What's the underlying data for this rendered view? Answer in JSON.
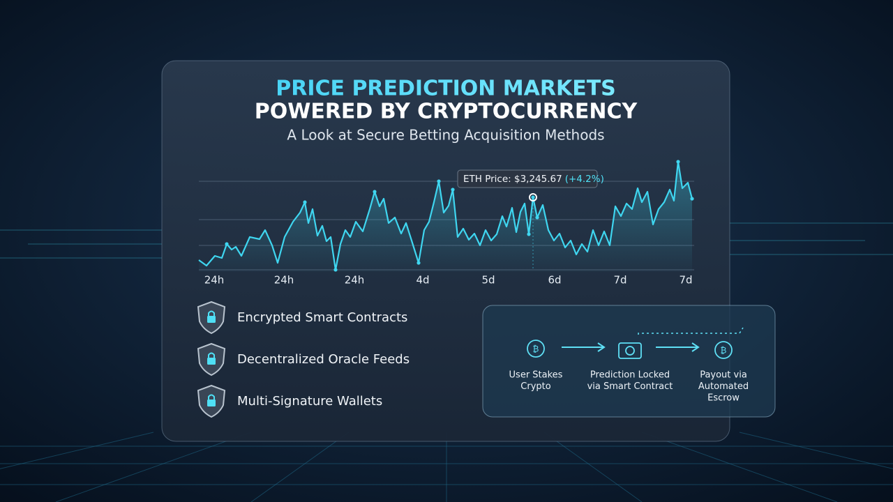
{
  "header": {
    "title_line1": "PRICE PREDICTION MARKETS",
    "title_line2": "POWERED BY CRYPTOCURRENCY",
    "subtitle": "A Look at Secure Betting Acquisition Methods"
  },
  "chart_data": {
    "type": "line",
    "x": [
      0,
      11,
      23,
      33,
      40,
      47,
      53,
      61,
      73,
      87,
      95,
      105,
      113,
      123,
      135,
      145,
      152,
      157,
      163,
      170,
      177,
      183,
      189,
      196,
      203,
      210,
      217,
      225,
      235,
      245,
      252,
      259,
      265,
      272,
      281,
      290,
      297,
      305,
      315,
      323,
      330,
      337,
      344,
      351,
      358,
      364,
      371,
      379,
      387,
      395,
      403,
      411,
      419,
      427,
      435,
      441,
      449,
      455,
      461,
      467,
      473,
      479,
      485,
      493,
      501,
      509,
      517,
      525,
      533,
      541,
      549,
      557,
      565,
      573,
      581,
      589,
      597,
      605,
      613,
      621,
      629,
      635,
      643,
      651,
      659,
      667,
      675,
      681,
      687,
      693,
      701,
      707
    ],
    "series": [
      {
        "color": "#3fd6f0",
        "values": [
          10.6,
          5.6,
          14.4,
          12.5,
          25,
          20,
          22.5,
          14.4,
          31.3,
          29.4,
          37.5,
          23.8,
          8.1,
          31.3,
          45,
          53.1,
          62.5,
          43.8,
          56.3,
          32.5,
          41.3,
          27.5,
          31.3,
          1.9,
          25,
          37.5,
          31.3,
          45,
          36.3,
          56.3,
          71.9,
          58.8,
          65.6,
          43.8,
          48.8,
          34.4,
          43.8,
          28.1,
          8.1,
          37.5,
          45,
          62.5,
          81.3,
          53.1,
          59.4,
          73.8,
          31.3,
          38.8,
          28.8,
          34.4,
          23.8,
          37.5,
          28.1,
          33.8,
          50,
          40.6,
          57.5,
          35.6,
          53.8,
          61.3,
          33.8,
          66.9,
          48.8,
          60,
          37.5,
          28.1,
          34.4,
          21.9,
          28.1,
          15.6,
          25,
          18.1,
          37.5,
          23.8,
          36.3,
          23.8,
          58.8,
          50,
          61.3,
          56.3,
          75,
          62.5,
          71.9,
          42.5,
          56.3,
          62.5,
          73.8,
          63.8,
          98.8,
          75,
          80,
          65.6
        ]
      }
    ],
    "xlim": [
      0,
      707
    ],
    "ylim": [
      0,
      100
    ],
    "xticks": [
      {
        "value": 22,
        "label": "24h"
      },
      {
        "value": 122,
        "label": "24h"
      },
      {
        "value": 223,
        "label": "24h"
      },
      {
        "value": 321,
        "label": "4d"
      },
      {
        "value": 415,
        "label": "5d"
      },
      {
        "value": 510,
        "label": "6d"
      },
      {
        "value": 604,
        "label": "7d"
      },
      {
        "value": 698,
        "label": "7d"
      }
    ],
    "annotation": {
      "label": "ETH Price: $3,245.67",
      "change": "(+4.2%)"
    }
  },
  "features": [
    "Encrypted Smart Contracts",
    "Decentralized Oracle Feeds",
    "Multi-Signature Wallets"
  ],
  "flow": {
    "steps": [
      [
        "User Stakes",
        "Crypto"
      ],
      [
        "Prediction Locked",
        "via Smart Contract"
      ],
      [
        "Payout via",
        "Automated",
        "Escrow"
      ]
    ]
  }
}
